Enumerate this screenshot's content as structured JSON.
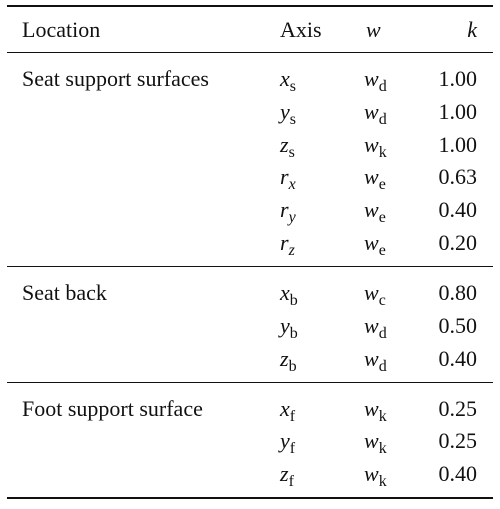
{
  "table": {
    "header": [
      "Location",
      "Axis",
      "w",
      "k"
    ],
    "groups": [
      {
        "location": "Seat support surfaces",
        "rows": [
          {
            "axis": {
              "symbol": "x",
              "subscript": "s"
            },
            "w": {
              "symbol": "w",
              "subscript": "d"
            },
            "k": "1.00"
          },
          {
            "axis": {
              "symbol": "y",
              "subscript": "s"
            },
            "w": {
              "symbol": "w",
              "subscript": "d"
            },
            "k": "1.00"
          },
          {
            "axis": {
              "symbol": "z",
              "subscript": "s"
            },
            "w": {
              "symbol": "w",
              "subscript": "k"
            },
            "k": "1.00"
          },
          {
            "axis": {
              "symbol": "r",
              "subscript": "x"
            },
            "w": {
              "symbol": "w",
              "subscript": "e"
            },
            "k": "0.63"
          },
          {
            "axis": {
              "symbol": "r",
              "subscript": "y"
            },
            "w": {
              "symbol": "w",
              "subscript": "e"
            },
            "k": "0.40"
          },
          {
            "axis": {
              "symbol": "r",
              "subscript": "z"
            },
            "w": {
              "symbol": "w",
              "subscript": "e"
            },
            "k": "0.20"
          }
        ]
      },
      {
        "location": "Seat back",
        "rows": [
          {
            "axis": {
              "symbol": "x",
              "subscript": "b"
            },
            "w": {
              "symbol": "w",
              "subscript": "c"
            },
            "k": "0.80"
          },
          {
            "axis": {
              "symbol": "y",
              "subscript": "b"
            },
            "w": {
              "symbol": "w",
              "subscript": "d"
            },
            "k": "0.50"
          },
          {
            "axis": {
              "symbol": "z",
              "subscript": "b"
            },
            "w": {
              "symbol": "w",
              "subscript": "d"
            },
            "k": "0.40"
          }
        ]
      },
      {
        "location": "Foot support surface",
        "rows": [
          {
            "axis": {
              "symbol": "x",
              "subscript": "f"
            },
            "w": {
              "symbol": "w",
              "subscript": "k"
            },
            "k": "0.25"
          },
          {
            "axis": {
              "symbol": "y",
              "subscript": "f"
            },
            "w": {
              "symbol": "w",
              "subscript": "k"
            },
            "k": "0.25"
          },
          {
            "axis": {
              "symbol": "z",
              "subscript": "f"
            },
            "w": {
              "symbol": "w",
              "subscript": "k"
            },
            "k": "0.40"
          }
        ]
      }
    ]
  }
}
